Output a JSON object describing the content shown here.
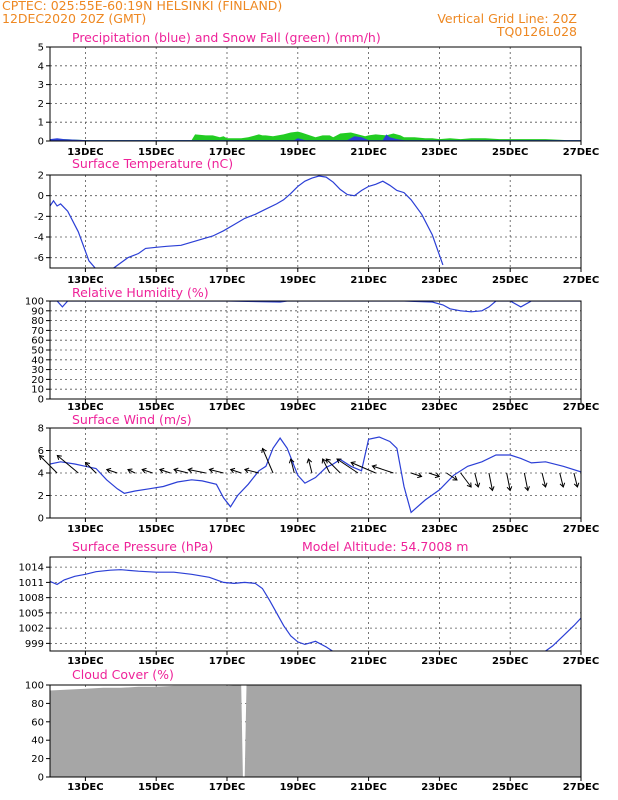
{
  "header": {
    "line1_left": "CPTEC:   025:55E-60:19N   HELSINKI (FINLAND)",
    "line2_left": "12DEC2020 20Z (GMT)",
    "line1_right": "Vertical Grid Line: 20Z",
    "line2_right": "TQ0126L028"
  },
  "colors": {
    "header": "#ee8822",
    "title": "#ee2299",
    "line": "#2b3fd6",
    "precip": "#2b3fd6",
    "snow": "#22cc22",
    "cloud": "#a6a6a6"
  },
  "x_axis": {
    "ticks": [
      {
        "day": 13,
        "label": "13DEC"
      },
      {
        "day": 15,
        "label": "15DEC"
      },
      {
        "day": 17,
        "label": "17DEC"
      },
      {
        "day": 19,
        "label": "19DEC"
      },
      {
        "day": 21,
        "label": "21DEC"
      },
      {
        "day": 23,
        "label": "23DEC"
      },
      {
        "day": 25,
        "label": "25DEC"
      },
      {
        "day": 27,
        "label": "27DEC"
      }
    ],
    "range": [
      12.0,
      27.0
    ]
  },
  "chart_data": [
    {
      "type": "area",
      "title": "Precipitation (blue) and Snow Fall (green) (mm/h)",
      "ylim": [
        0,
        5
      ],
      "yticks": [
        "0",
        "1",
        "2",
        "3",
        "4",
        "5"
      ],
      "grid": true,
      "series": [
        {
          "name": "Snow Fall",
          "x": [
            12.0,
            12.2,
            12.4,
            13.0,
            16.0,
            16.1,
            16.4,
            16.6,
            16.8,
            16.9,
            17.0,
            17.4,
            17.6,
            17.8,
            17.9,
            18.0,
            18.1,
            18.3,
            18.6,
            18.8,
            19.0,
            19.1,
            19.5,
            19.7,
            19.9,
            20.0,
            20.2,
            20.5,
            20.7,
            20.9,
            21.0,
            21.2,
            21.5,
            21.7,
            21.9,
            22.0,
            22.3,
            22.6,
            22.8,
            23.0,
            23.3,
            23.6,
            23.9,
            24.3,
            24.7,
            25.0,
            25.5,
            26.0,
            26.6,
            27.0
          ],
          "y": [
            0.1,
            0.1,
            0.1,
            0.05,
            0.05,
            0.35,
            0.3,
            0.3,
            0.2,
            0.25,
            0.15,
            0.15,
            0.2,
            0.3,
            0.35,
            0.3,
            0.3,
            0.25,
            0.35,
            0.45,
            0.5,
            0.45,
            0.2,
            0.3,
            0.3,
            0.2,
            0.4,
            0.45,
            0.35,
            0.25,
            0.3,
            0.35,
            0.3,
            0.4,
            0.3,
            0.2,
            0.2,
            0.15,
            0.15,
            0.1,
            0.15,
            0.1,
            0.15,
            0.15,
            0.1,
            0.1,
            0.1,
            0.1,
            0.05,
            0.05
          ]
        },
        {
          "name": "Precipitation",
          "x": [
            12.0,
            12.2,
            12.4,
            13.0,
            18.9,
            19.0,
            19.2,
            20.4,
            20.6,
            20.8,
            21.0,
            21.4,
            21.5,
            21.6,
            21.8,
            22.0,
            22.4,
            27.0
          ],
          "y": [
            0.1,
            0.15,
            0.1,
            0.05,
            0.05,
            0.15,
            0.05,
            0.05,
            0.25,
            0.2,
            0.05,
            0.05,
            0.35,
            0.2,
            0.1,
            0.05,
            0.05,
            0.05
          ]
        }
      ]
    },
    {
      "type": "line",
      "title": "Surface Temperature (nC)",
      "ylim": [
        -7,
        2
      ],
      "yticks": [
        "-6",
        "-4",
        "-2",
        "0",
        "2"
      ],
      "grid": true,
      "x": [
        12.0,
        12.1,
        12.2,
        12.3,
        12.5,
        12.8,
        13.1,
        13.4,
        13.8,
        14.2,
        14.5,
        14.7,
        15.0,
        15.3,
        15.7,
        16.0,
        16.3,
        16.6,
        16.9,
        17.2,
        17.5,
        17.8,
        18.1,
        18.4,
        18.6,
        18.8,
        19.0,
        19.2,
        19.4,
        19.6,
        19.8,
        20.0,
        20.2,
        20.4,
        20.6,
        20.8,
        21.0,
        21.2,
        21.4,
        21.6,
        21.8,
        22.0,
        22.2,
        22.5,
        22.8,
        23.1
      ],
      "y": [
        -1.0,
        -0.5,
        -1.0,
        -0.8,
        -1.5,
        -3.5,
        -6.3,
        -7.5,
        -7.0,
        -6.0,
        -5.6,
        -5.1,
        -5.0,
        -4.9,
        -4.8,
        -4.5,
        -4.2,
        -3.9,
        -3.4,
        -2.8,
        -2.2,
        -1.8,
        -1.3,
        -0.8,
        -0.4,
        0.2,
        0.9,
        1.4,
        1.7,
        1.9,
        1.8,
        1.3,
        0.6,
        0.1,
        0.0,
        0.5,
        0.9,
        1.1,
        1.4,
        1.0,
        0.5,
        0.3,
        -0.4,
        -1.8,
        -3.8,
        -6.7
      ]
    },
    {
      "type": "line",
      "title": "Relative Humidity (%)",
      "ylim": [
        0,
        100
      ],
      "yticks": [
        "0",
        "10",
        "20",
        "30",
        "40",
        "50",
        "60",
        "70",
        "80",
        "90",
        "100"
      ],
      "grid": true,
      "x": [
        12.0,
        12.2,
        12.35,
        12.5,
        13.0,
        14.0,
        15.0,
        16.0,
        17.0,
        18.5,
        18.7,
        18.9,
        19.5,
        20.0,
        21.0,
        22.0,
        22.8,
        23.1,
        23.3,
        23.6,
        23.9,
        24.2,
        24.4,
        24.6,
        24.8,
        25.0,
        25.3,
        25.6,
        26.0,
        27.0
      ],
      "y": [
        100,
        100,
        94,
        100,
        100,
        100,
        100,
        100,
        100,
        99,
        100,
        100,
        100,
        100,
        100,
        100,
        99,
        96,
        92,
        90,
        89,
        90,
        94,
        100,
        100,
        100,
        94,
        100,
        100,
        100
      ]
    },
    {
      "type": "line",
      "title": "Surface Wind (m/s)",
      "ylim": [
        0,
        8
      ],
      "yticks": [
        "0",
        "2",
        "4",
        "6",
        "8"
      ],
      "grid": true,
      "x": [
        12.0,
        12.3,
        12.7,
        13.0,
        13.3,
        13.6,
        13.9,
        14.1,
        14.4,
        14.8,
        15.2,
        15.6,
        16.0,
        16.3,
        16.7,
        16.9,
        17.1,
        17.3,
        17.6,
        17.9,
        18.1,
        18.3,
        18.5,
        18.7,
        19.0,
        19.2,
        19.5,
        19.8,
        20.0,
        20.2,
        20.5,
        20.8,
        21.0,
        21.3,
        21.6,
        21.8,
        22.0,
        22.2,
        22.6,
        23.0,
        23.4,
        23.8,
        24.2,
        24.6,
        25.0,
        25.3,
        25.6,
        26.0,
        26.5,
        27.0
      ],
      "y": [
        4.8,
        5.0,
        4.8,
        4.6,
        4.4,
        3.4,
        2.6,
        2.2,
        2.4,
        2.6,
        2.8,
        3.2,
        3.4,
        3.3,
        3.0,
        1.8,
        1.0,
        2.0,
        3.0,
        4.2,
        4.6,
        6.2,
        7.1,
        6.2,
        3.8,
        3.1,
        3.6,
        4.5,
        4.8,
        5.2,
        4.6,
        4.2,
        7.0,
        7.2,
        6.8,
        6.2,
        2.8,
        0.5,
        1.6,
        2.5,
        3.8,
        4.6,
        5.0,
        5.6,
        5.6,
        5.3,
        4.9,
        5.0,
        4.6,
        4.1
      ]
    },
    {
      "type": "line",
      "title": "Surface Pressure (hPa)",
      "annotation": "Model Altitude: 54.7008 m",
      "ylim": [
        997.5,
        1016
      ],
      "yticks": [
        "999",
        "1002",
        "1005",
        "1008",
        "1011",
        "1014"
      ],
      "grid": true,
      "x": [
        12.0,
        12.2,
        12.4,
        12.7,
        13.0,
        13.3,
        13.7,
        14.0,
        14.5,
        15.0,
        15.5,
        16.0,
        16.5,
        16.9,
        17.2,
        17.5,
        17.8,
        18.0,
        18.2,
        18.4,
        18.6,
        18.8,
        19.0,
        19.2,
        19.5,
        19.8,
        20.0,
        20.1,
        25.9,
        26.2,
        26.5,
        26.8,
        27.0
      ],
      "y": [
        1011.2,
        1010.6,
        1011.5,
        1012.2,
        1012.6,
        1013.1,
        1013.4,
        1013.5,
        1013.2,
        1013.0,
        1013.0,
        1012.6,
        1012.0,
        1011.0,
        1010.8,
        1011.0,
        1010.8,
        1009.8,
        1007.5,
        1005.0,
        1002.5,
        1000.5,
        999.3,
        998.8,
        999.4,
        998.3,
        997.4,
        997.0,
        997.0,
        998.5,
        1000.5,
        1002.5,
        1004.0
      ]
    },
    {
      "type": "area",
      "title": "Cloud Cover (%)",
      "ylim": [
        0,
        100
      ],
      "yticks": [
        "0",
        "20",
        "40",
        "60",
        "80",
        "100"
      ],
      "grid": true,
      "x": [
        12.0,
        12.5,
        13.0,
        13.5,
        14.0,
        14.5,
        15.0,
        15.5,
        16.0,
        16.5,
        17.0,
        17.4,
        17.45,
        17.5,
        17.55,
        17.6,
        18.0,
        27.0
      ],
      "y": [
        94,
        95,
        96,
        97,
        97,
        98,
        98,
        99,
        99,
        99,
        99,
        100,
        0,
        0,
        100,
        100,
        100,
        100
      ]
    }
  ],
  "wind_vectors": {
    "x": [
      12.2,
      12.8,
      13.3,
      13.9,
      14.4,
      14.9,
      15.4,
      15.9,
      16.4,
      16.9,
      17.4,
      17.9,
      18.3,
      18.9,
      19.4,
      19.9,
      20.2,
      20.7,
      21.2,
      21.7,
      22.2,
      22.7,
      23.2,
      23.6,
      24.0,
      24.4,
      24.9,
      25.4,
      25.9,
      26.4,
      26.8
    ],
    "u": [
      -2.5,
      -3.0,
      -1.5,
      -1.5,
      -1.0,
      -1.5,
      -1.5,
      -2.0,
      -2.5,
      -2.0,
      -1.5,
      -2.0,
      -1.5,
      -0.5,
      -0.5,
      -1.0,
      -2.0,
      -3.0,
      -3.5,
      -3.0,
      1.5,
      1.5,
      1.5,
      1.5,
      0.5,
      0.5,
      0.5,
      0.5,
      0.5,
      0.5,
      0.5
    ],
    "v": [
      2.5,
      2.5,
      1.5,
      0.5,
      0.5,
      0.5,
      0.5,
      0.5,
      0.5,
      0.5,
      0.5,
      0.5,
      3.5,
      2.0,
      2.0,
      2.0,
      2.0,
      2.0,
      1.5,
      1.0,
      -0.5,
      -0.5,
      -1.0,
      -2.0,
      -2.0,
      -2.5,
      -2.5,
      -2.5,
      -2.0,
      -2.0,
      -2.0
    ]
  }
}
